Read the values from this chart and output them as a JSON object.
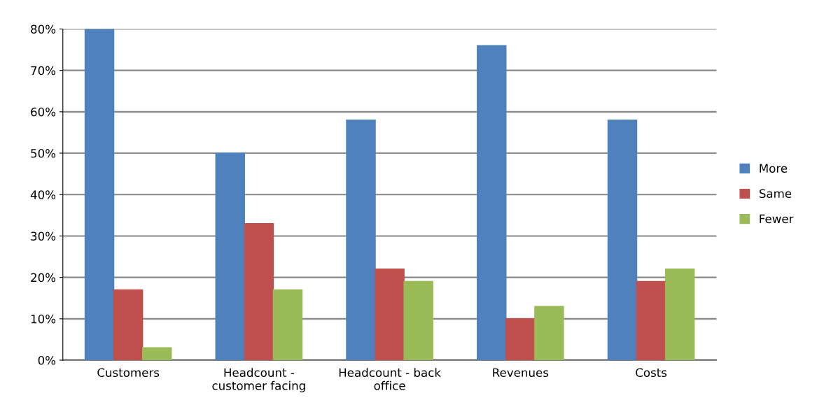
{
  "chart_data": {
    "type": "bar",
    "categories": [
      "Customers",
      "Headcount -\ncustomer facing",
      "Headcount - back\noffice",
      "Revenues",
      "Costs"
    ],
    "series": [
      {
        "name": "More",
        "color": "#4f81bd",
        "values": [
          80,
          50,
          58,
          76,
          58
        ]
      },
      {
        "name": "Same",
        "color": "#c0504d",
        "values": [
          17,
          33,
          22,
          10,
          19
        ]
      },
      {
        "name": "Fewer",
        "color": "#9bbb59",
        "values": [
          3,
          17,
          19,
          13,
          22
        ]
      }
    ],
    "ylim": [
      0,
      80
    ],
    "yticks": [
      {
        "value": 0,
        "label": "0%"
      },
      {
        "value": 10,
        "label": "10%"
      },
      {
        "value": 20,
        "label": "20%"
      },
      {
        "value": 30,
        "label": "30%"
      },
      {
        "value": 40,
        "label": "40%"
      },
      {
        "value": 50,
        "label": "50%"
      },
      {
        "value": 60,
        "label": "60%"
      },
      {
        "value": 70,
        "label": "70%"
      },
      {
        "value": 80,
        "label": "80%"
      }
    ],
    "grid": "y",
    "legend": "right"
  }
}
